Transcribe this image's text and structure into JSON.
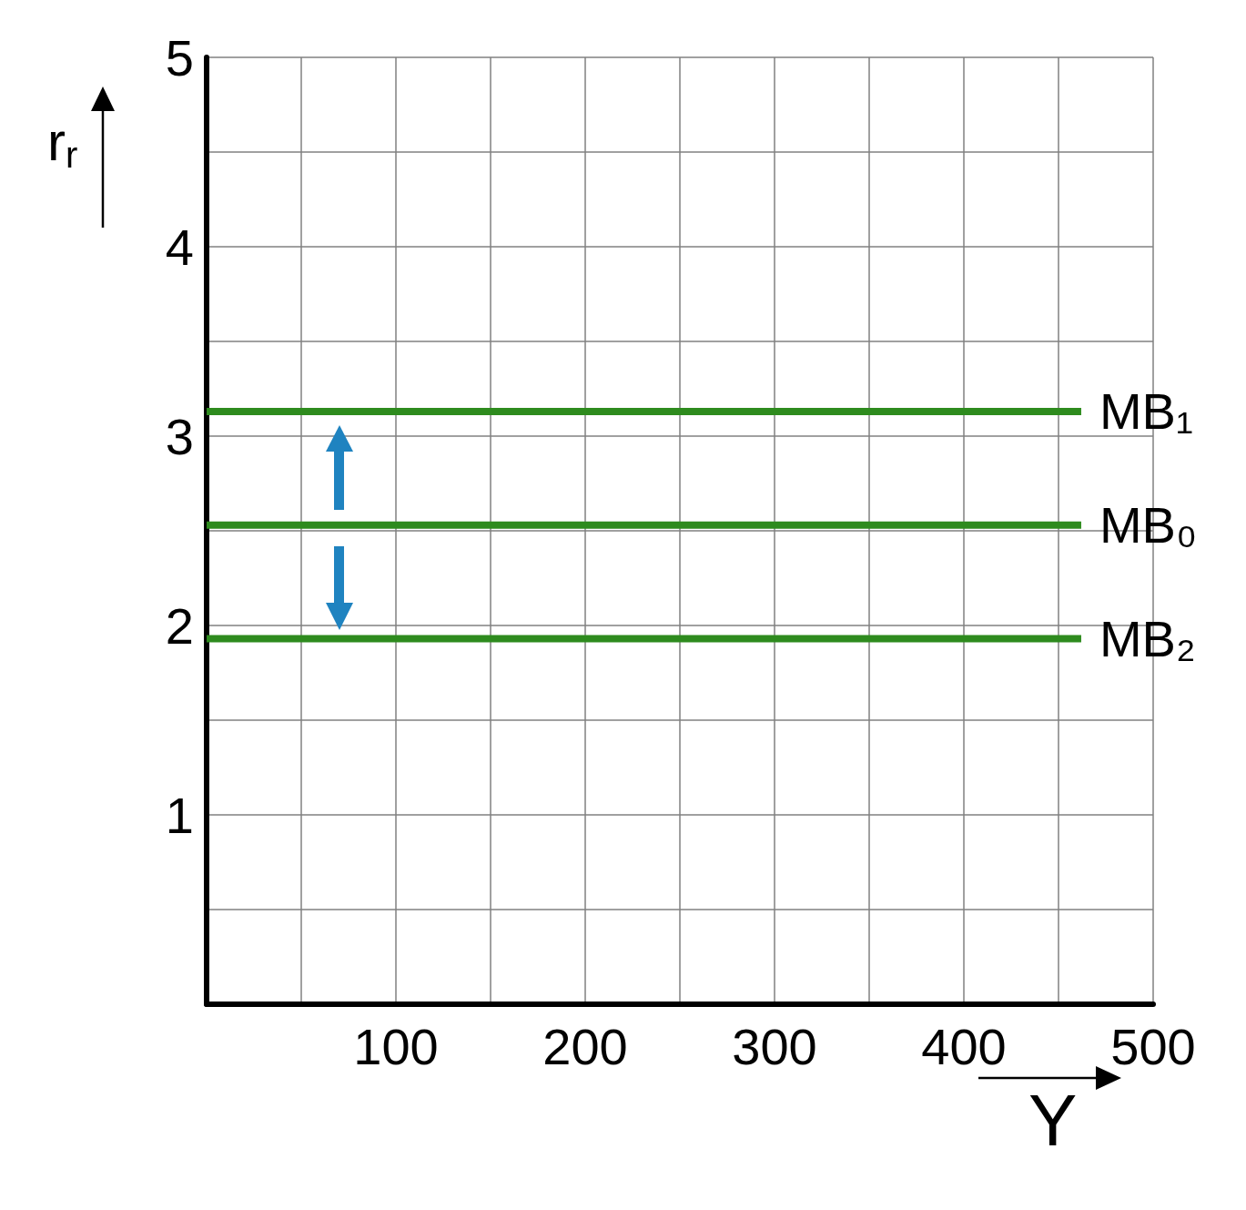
{
  "chart_data": {
    "type": "line",
    "xlabel": "Y",
    "ylabel": "r$_{r}$",
    "xlim": [
      0,
      500
    ],
    "ylim": [
      0,
      5
    ],
    "xticks": [
      {
        "value": 50,
        "label": null
      },
      100,
      {
        "value": 150,
        "label": null
      },
      200,
      {
        "value": 250,
        "label": null
      },
      300,
      {
        "value": 350,
        "label": null
      },
      400,
      {
        "value": 450,
        "label": null
      },
      500
    ],
    "yticks": [
      {
        "value": 0.5,
        "label": null
      },
      1,
      {
        "value": 1.5,
        "label": null
      },
      2,
      {
        "value": 2.5,
        "label": null
      },
      3,
      {
        "value": 3.5,
        "label": null
      },
      4,
      {
        "value": 4.5,
        "label": null
      },
      5
    ],
    "grid": true,
    "legend": false,
    "marker": "none",
    "line_style": "solid",
    "x": [
      0,
      462
    ],
    "series": [
      {
        "name": "MB₁",
        "color": "#2e8b1e",
        "values": [
          3.13,
          3.13
        ]
      },
      {
        "name": "MB₀",
        "color": "#2e8b1e",
        "values": [
          2.53,
          2.53
        ]
      },
      {
        "name": "MB₂",
        "color": "#2e8b1e",
        "values": [
          1.93,
          1.93
        ]
      }
    ]
  }
}
